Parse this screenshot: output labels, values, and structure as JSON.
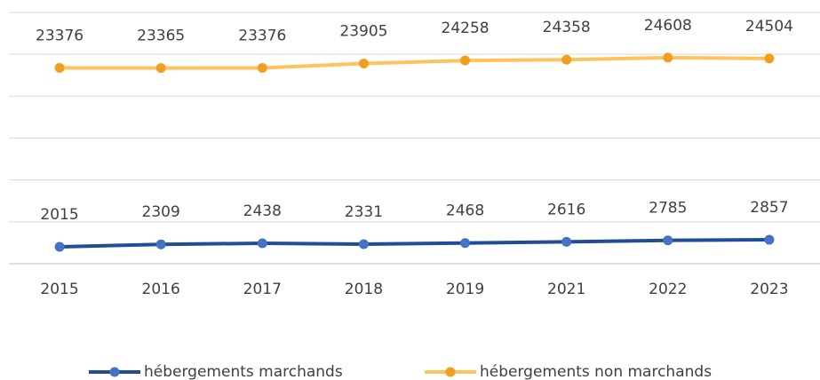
{
  "chart_data": {
    "type": "line",
    "categories": [
      "2015",
      "2016",
      "2017",
      "2018",
      "2019",
      "2021",
      "2022",
      "2023"
    ],
    "series": [
      {
        "name": "hébergements marchands",
        "color": "#1f4e96",
        "marker_color": "#4472c4",
        "values": [
          2015,
          2309,
          2438,
          2331,
          2468,
          2616,
          2785,
          2857
        ]
      },
      {
        "name": "hébergements non marchands",
        "color": "#ffc35c",
        "marker_color": "#f0a020",
        "values": [
          23376,
          23365,
          23376,
          23905,
          24258,
          24358,
          24608,
          24504
        ]
      }
    ],
    "ylim": [
      0,
      30000
    ],
    "yticks": [
      0,
      5000,
      10000,
      15000,
      20000,
      25000,
      30000
    ],
    "grid": true,
    "legend": "bottom"
  }
}
